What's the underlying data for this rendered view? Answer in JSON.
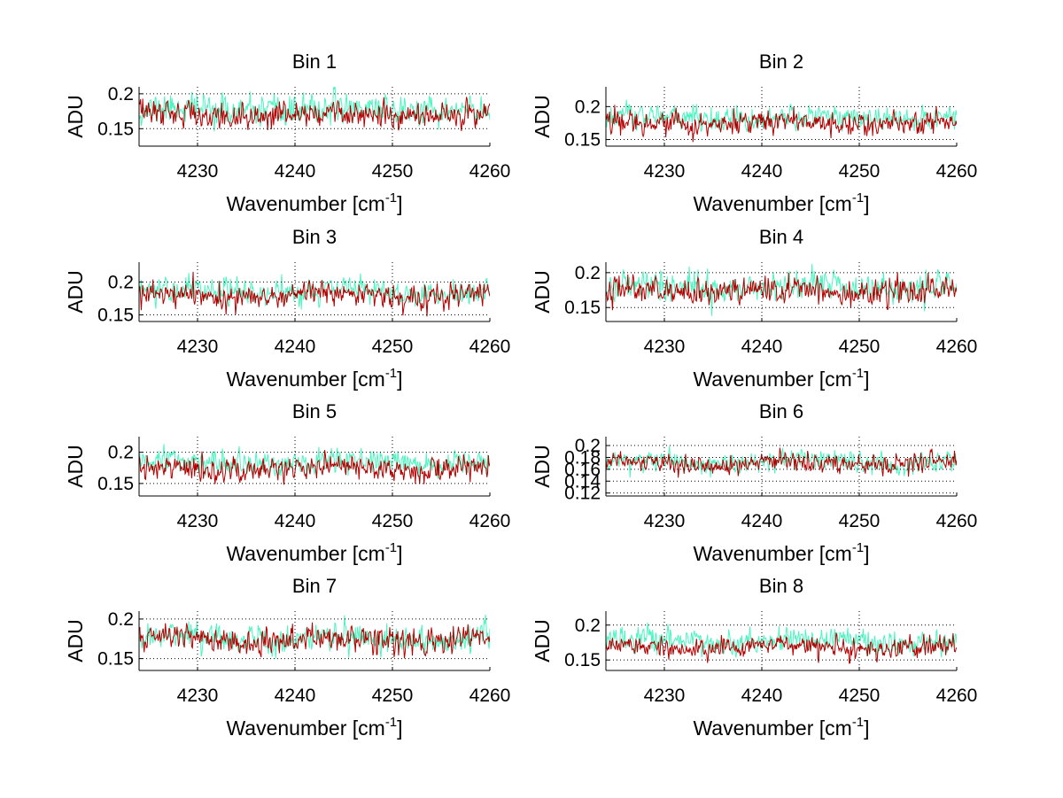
{
  "chart_data": [
    {
      "type": "line",
      "title": "Bin 1",
      "xlabel": "Wavenumber [cm",
      "xlabel_sup": "-1",
      "xlabel_end": "]",
      "ylabel": "ADU",
      "xlim": [
        4224,
        4260
      ],
      "ylim": [
        0.125,
        0.21
      ],
      "xticks": [
        4230,
        4240,
        4250,
        4260
      ],
      "xtick_labels": [
        "4230",
        "4240",
        "4250",
        "4260"
      ],
      "yticks": [
        0.15,
        0.2
      ],
      "ytick_labels": [
        "0.15",
        "0.2"
      ],
      "series": [
        {
          "name": "cyan",
          "color": "#4df5c0",
          "mean": 0.177,
          "noise": 0.013,
          "seed": 11
        },
        {
          "name": "red",
          "color": "#b30000",
          "mean": 0.17,
          "noise": 0.011,
          "seed": 12
        }
      ]
    },
    {
      "type": "line",
      "title": "Bin 2",
      "xlabel": "Wavenumber [cm",
      "xlabel_sup": "-1",
      "xlabel_end": "]",
      "ylabel": "ADU",
      "xlim": [
        4224,
        4260
      ],
      "ylim": [
        0.14,
        0.23
      ],
      "xticks": [
        4230,
        4240,
        4250,
        4260
      ],
      "xtick_labels": [
        "4230",
        "4240",
        "4250",
        "4260"
      ],
      "yticks": [
        0.15,
        0.2
      ],
      "ytick_labels": [
        "0.15",
        "0.2"
      ],
      "series": [
        {
          "name": "cyan",
          "color": "#4df5c0",
          "mean": 0.183,
          "noise": 0.012,
          "seed": 21
        },
        {
          "name": "red",
          "color": "#b30000",
          "mean": 0.175,
          "noise": 0.011,
          "seed": 22
        }
      ]
    },
    {
      "type": "line",
      "title": "Bin 3",
      "xlabel": "Wavenumber [cm",
      "xlabel_sup": "-1",
      "xlabel_end": "]",
      "ylabel": "ADU",
      "xlim": [
        4224,
        4260
      ],
      "ylim": [
        0.14,
        0.23
      ],
      "xticks": [
        4230,
        4240,
        4250,
        4260
      ],
      "xtick_labels": [
        "4230",
        "4240",
        "4250",
        "4260"
      ],
      "yticks": [
        0.15,
        0.2
      ],
      "ytick_labels": [
        "0.15",
        "0.2"
      ],
      "series": [
        {
          "name": "cyan",
          "color": "#4df5c0",
          "mean": 0.186,
          "noise": 0.012,
          "seed": 31
        },
        {
          "name": "red",
          "color": "#b30000",
          "mean": 0.18,
          "noise": 0.011,
          "seed": 32
        }
      ]
    },
    {
      "type": "line",
      "title": "Bin 4",
      "xlabel": "Wavenumber [cm",
      "xlabel_sup": "-1",
      "xlabel_end": "]",
      "ylabel": "ADU",
      "xlim": [
        4224,
        4260
      ],
      "ylim": [
        0.13,
        0.215
      ],
      "xticks": [
        4230,
        4240,
        4250,
        4260
      ],
      "xtick_labels": [
        "4230",
        "4240",
        "4250",
        "4260"
      ],
      "yticks": [
        0.15,
        0.2
      ],
      "ytick_labels": [
        "0.15",
        "0.2"
      ],
      "series": [
        {
          "name": "cyan",
          "color": "#4df5c0",
          "mean": 0.18,
          "noise": 0.013,
          "seed": 41
        },
        {
          "name": "red",
          "color": "#b30000",
          "mean": 0.174,
          "noise": 0.012,
          "seed": 42
        }
      ]
    },
    {
      "type": "line",
      "title": "Bin 5",
      "xlabel": "Wavenumber [cm",
      "xlabel_sup": "-1",
      "xlabel_end": "]",
      "ylabel": "ADU",
      "xlim": [
        4224,
        4260
      ],
      "ylim": [
        0.13,
        0.225
      ],
      "xticks": [
        4230,
        4240,
        4250,
        4260
      ],
      "xtick_labels": [
        "4230",
        "4240",
        "4250",
        "4260"
      ],
      "yticks": [
        0.15,
        0.2
      ],
      "ytick_labels": [
        "0.15",
        "0.2"
      ],
      "series": [
        {
          "name": "cyan",
          "color": "#4df5c0",
          "mean": 0.182,
          "noise": 0.012,
          "seed": 51
        },
        {
          "name": "red",
          "color": "#b30000",
          "mean": 0.175,
          "noise": 0.012,
          "seed": 52
        }
      ]
    },
    {
      "type": "line",
      "title": "Bin 6",
      "xlabel": "Wavenumber [cm",
      "xlabel_sup": "-1",
      "xlabel_end": "]",
      "ylabel": "ADU",
      "xlim": [
        4224,
        4260
      ],
      "ylim": [
        0.115,
        0.215
      ],
      "xticks": [
        4230,
        4240,
        4250,
        4260
      ],
      "xtick_labels": [
        "4230",
        "4240",
        "4250",
        "4260"
      ],
      "yticks": [
        0.12,
        0.14,
        0.16,
        0.18,
        0.2
      ],
      "ytick_labels": [
        "0.12",
        "0.14",
        "0.16",
        "0.18",
        "0.2"
      ],
      "series": [
        {
          "name": "cyan",
          "color": "#4df5c0",
          "mean": 0.172,
          "noise": 0.011,
          "seed": 61
        },
        {
          "name": "red",
          "color": "#b30000",
          "mean": 0.17,
          "noise": 0.01,
          "seed": 62
        }
      ]
    },
    {
      "type": "line",
      "title": "Bin 7",
      "xlabel": "Wavenumber [cm",
      "xlabel_sup": "-1",
      "xlabel_end": "]",
      "ylabel": "ADU",
      "xlim": [
        4224,
        4260
      ],
      "ylim": [
        0.135,
        0.21
      ],
      "xticks": [
        4230,
        4240,
        4250,
        4260
      ],
      "xtick_labels": [
        "4230",
        "4240",
        "4250",
        "4260"
      ],
      "yticks": [
        0.15,
        0.2
      ],
      "ytick_labels": [
        "0.15",
        "0.2"
      ],
      "series": [
        {
          "name": "cyan",
          "color": "#4df5c0",
          "mean": 0.176,
          "noise": 0.011,
          "seed": 71
        },
        {
          "name": "red",
          "color": "#b30000",
          "mean": 0.174,
          "noise": 0.011,
          "seed": 72
        }
      ]
    },
    {
      "type": "line",
      "title": "Bin 8",
      "xlabel": "Wavenumber [cm",
      "xlabel_sup": "-1",
      "xlabel_end": "]",
      "ylabel": "ADU",
      "xlim": [
        4224,
        4260
      ],
      "ylim": [
        0.135,
        0.22
      ],
      "xticks": [
        4230,
        4240,
        4250,
        4260
      ],
      "xtick_labels": [
        "4230",
        "4240",
        "4250",
        "4260"
      ],
      "yticks": [
        0.15,
        0.2
      ],
      "ytick_labels": [
        "0.15",
        "0.2"
      ],
      "series": [
        {
          "name": "cyan",
          "color": "#4df5c0",
          "mean": 0.178,
          "noise": 0.011,
          "seed": 81
        },
        {
          "name": "red",
          "color": "#b30000",
          "mean": 0.168,
          "noise": 0.009,
          "seed": 82
        }
      ]
    }
  ]
}
